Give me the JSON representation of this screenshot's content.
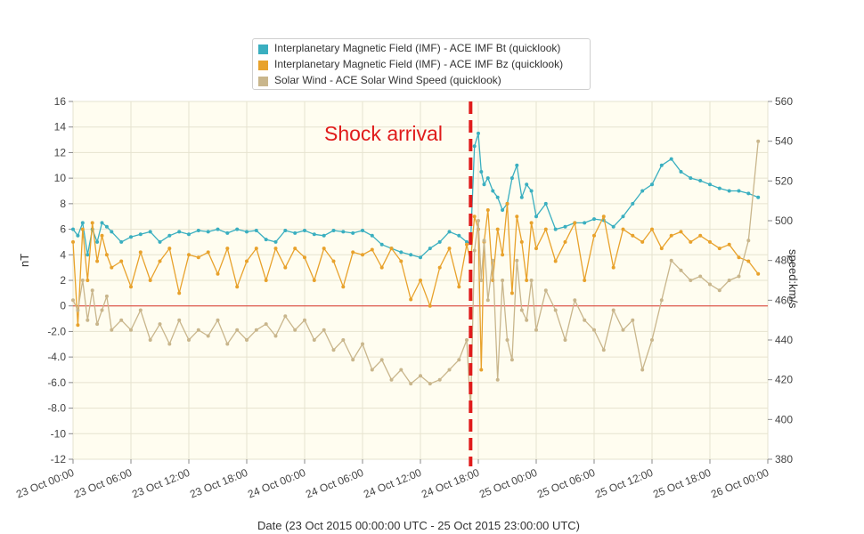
{
  "chart_data": {
    "type": "line",
    "xlabel": "Date (23 Oct 2015 00:00:00 UTC - 25 Oct 2015 23:00:00 UTC)",
    "ylabel": "nT",
    "y2label": "speed:km/s",
    "ylim": [
      -12,
      16
    ],
    "y2lim": [
      380,
      560
    ],
    "x_range_hours": [
      0,
      72
    ],
    "yticks": [
      "16",
      "14",
      "12",
      "10",
      "8",
      "6",
      "4",
      "2",
      "0",
      "-2.0",
      "-4.0",
      "-6.0",
      "-8.0",
      "-10",
      "-12"
    ],
    "y2ticks": [
      "560",
      "540",
      "520",
      "500",
      "480",
      "460",
      "440",
      "420",
      "400",
      "380"
    ],
    "xticks": [
      "23 Oct 00:00",
      "23 Oct 06:00",
      "23 Oct 12:00",
      "23 Oct 18:00",
      "24 Oct 00:00",
      "24 Oct 06:00",
      "24 Oct 12:00",
      "24 Oct 18:00",
      "25 Oct 00:00",
      "25 Oct 06:00",
      "25 Oct 12:00",
      "25 Oct 18:00",
      "26 Oct 00:00"
    ],
    "grid": true,
    "legend_position": "top-center",
    "zero_line_color": "#d9362b",
    "shock": {
      "hour": 41.2,
      "label": "Shock arrival",
      "color": "#e01b1b"
    },
    "series": [
      {
        "name": "Interplanetary Magnetic Field (IMF) - ACE IMF Bt (quicklook)",
        "color": "#3aafc0",
        "axis": "left",
        "x": [
          0,
          0.5,
          1,
          1.5,
          2,
          2.5,
          3,
          3.5,
          4,
          5,
          6,
          7,
          8,
          9,
          10,
          11,
          12,
          13,
          14,
          15,
          16,
          17,
          18,
          19,
          20,
          21,
          22,
          23,
          24,
          25,
          26,
          27,
          28,
          29,
          30,
          31,
          32,
          33,
          34,
          35,
          36,
          37,
          38,
          39,
          40,
          40.8,
          41.2,
          41.6,
          42,
          42.3,
          42.6,
          43,
          43.5,
          44,
          44.5,
          45,
          45.5,
          46,
          46.5,
          47,
          47.5,
          48,
          49,
          50,
          51,
          52,
          53,
          54,
          55,
          56,
          57,
          58,
          59,
          60,
          61,
          62,
          63,
          64,
          65,
          66,
          67,
          68,
          69,
          70,
          71
        ],
        "y": [
          6.0,
          5.5,
          6.5,
          4.0,
          6.0,
          5.0,
          6.5,
          6.2,
          5.8,
          5.0,
          5.4,
          5.6,
          5.8,
          5.0,
          5.5,
          5.8,
          5.6,
          5.9,
          5.8,
          6.0,
          5.7,
          6.0,
          5.8,
          5.9,
          5.2,
          5.0,
          5.9,
          5.7,
          5.9,
          5.6,
          5.5,
          5.9,
          5.8,
          5.7,
          5.9,
          5.5,
          4.8,
          4.5,
          4.2,
          4.0,
          3.8,
          4.5,
          5.0,
          5.8,
          5.5,
          5.0,
          4.9,
          12.5,
          13.5,
          10.5,
          9.5,
          10.0,
          9.0,
          8.5,
          7.5,
          8.0,
          10.0,
          11.0,
          8.5,
          9.5,
          9.0,
          7.0,
          8.0,
          6.0,
          6.2,
          6.5,
          6.5,
          6.8,
          6.7,
          6.2,
          7.0,
          8.0,
          9.0,
          9.5,
          11.0,
          11.5,
          10.5,
          10.0,
          9.8,
          9.5,
          9.2,
          9.0,
          9.0,
          8.8,
          8.5
        ]
      },
      {
        "name": "Interplanetary Magnetic Field (IMF) - ACE IMF Bz (quicklook)",
        "color": "#e8a22c",
        "axis": "left",
        "x": [
          0,
          0.5,
          1,
          1.5,
          2,
          2.5,
          3,
          3.5,
          4,
          5,
          6,
          7,
          8,
          9,
          10,
          11,
          12,
          13,
          14,
          15,
          16,
          17,
          18,
          19,
          20,
          21,
          22,
          23,
          24,
          25,
          26,
          27,
          28,
          29,
          30,
          31,
          32,
          33,
          34,
          35,
          36,
          37,
          38,
          39,
          40,
          40.8,
          41.2,
          41.6,
          42,
          42.3,
          42.6,
          43,
          43.5,
          44,
          44.5,
          45,
          45.5,
          46,
          46.5,
          47,
          47.5,
          48,
          49,
          50,
          51,
          52,
          53,
          54,
          55,
          56,
          57,
          58,
          59,
          60,
          61,
          62,
          63,
          64,
          65,
          66,
          67,
          68,
          69,
          70,
          71
        ],
        "y": [
          5.0,
          -1.5,
          6.0,
          2.0,
          6.5,
          3.5,
          5.5,
          4.0,
          3.0,
          3.5,
          1.5,
          4.2,
          2.0,
          3.5,
          4.5,
          1.0,
          4.0,
          3.8,
          4.2,
          2.5,
          4.5,
          1.5,
          3.5,
          4.5,
          2.0,
          4.5,
          3.0,
          4.5,
          3.8,
          2.0,
          4.5,
          3.5,
          1.5,
          4.2,
          4.0,
          4.4,
          3.0,
          4.5,
          3.5,
          0.5,
          2.0,
          0,
          3.0,
          4.5,
          1.5,
          4.8,
          3.5,
          7.0,
          6.0,
          -5.0,
          5.0,
          7.5,
          2.0,
          6.0,
          4.0,
          8.0,
          1.0,
          7.0,
          5.0,
          2.0,
          6.5,
          4.5,
          6.0,
          3.5,
          5.0,
          6.5,
          2.0,
          5.5,
          7.0,
          3.0,
          6.0,
          5.5,
          5.0,
          6.0,
          4.5,
          5.5,
          5.8,
          5.0,
          5.5,
          5.0,
          4.5,
          4.8,
          3.8,
          3.5,
          2.5
        ]
      },
      {
        "name": "Solar Wind - ACE Solar Wind Speed (quicklook)",
        "color": "#c9b68c",
        "axis": "right",
        "x": [
          0,
          0.5,
          1,
          1.5,
          2,
          2.5,
          3,
          3.5,
          4,
          5,
          6,
          7,
          8,
          9,
          10,
          11,
          12,
          13,
          14,
          15,
          16,
          17,
          18,
          19,
          20,
          21,
          22,
          23,
          24,
          25,
          26,
          27,
          28,
          29,
          30,
          31,
          32,
          33,
          34,
          35,
          36,
          37,
          38,
          39,
          40,
          40.8,
          41.2,
          41.6,
          42,
          42.3,
          42.6,
          43,
          43.5,
          44,
          44.5,
          45,
          45.5,
          46,
          46.5,
          47,
          47.5,
          48,
          49,
          50,
          51,
          52,
          53,
          54,
          55,
          56,
          57,
          58,
          59,
          60,
          61,
          62,
          63,
          64,
          65,
          66,
          67,
          68,
          69,
          70,
          71
        ],
        "y": [
          460,
          455,
          470,
          450,
          465,
          448,
          455,
          462,
          445,
          450,
          445,
          455,
          440,
          448,
          438,
          450,
          440,
          445,
          442,
          450,
          438,
          445,
          440,
          445,
          448,
          442,
          452,
          445,
          450,
          440,
          445,
          435,
          440,
          430,
          438,
          425,
          430,
          420,
          425,
          418,
          422,
          418,
          420,
          425,
          430,
          440,
          405,
          485,
          500,
          470,
          490,
          460,
          480,
          420,
          470,
          440,
          430,
          480,
          455,
          450,
          470,
          445,
          465,
          455,
          440,
          460,
          450,
          445,
          435,
          455,
          445,
          450,
          425,
          440,
          460,
          480,
          475,
          470,
          472,
          468,
          465,
          470,
          472,
          490,
          540
        ]
      }
    ]
  }
}
